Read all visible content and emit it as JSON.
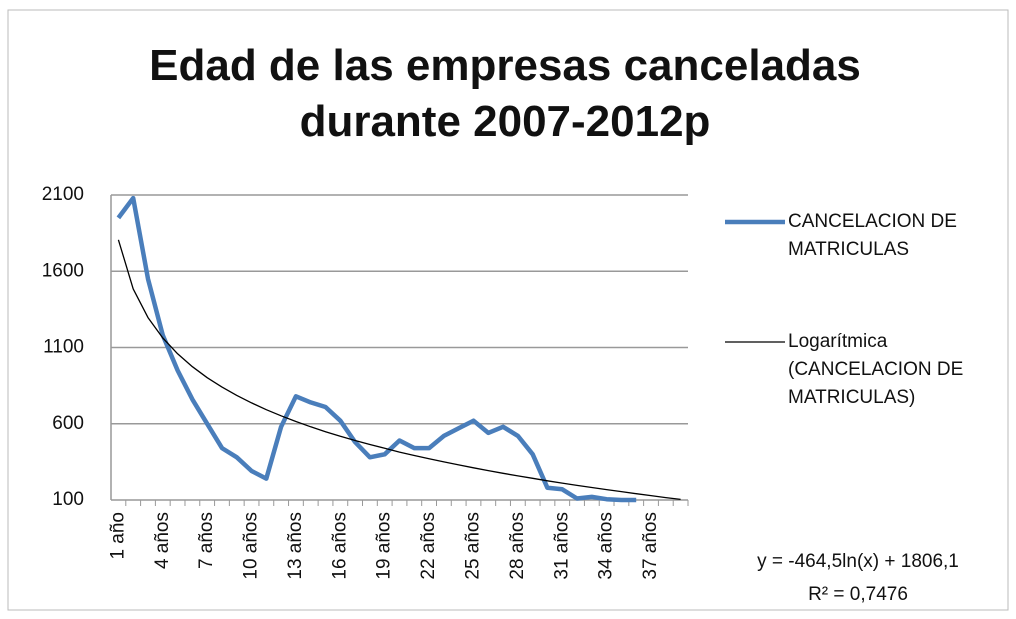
{
  "chart_data": {
    "type": "line",
    "title": "Edad de las empresas canceladas durante 2007-2012p",
    "categories": [
      "1 año",
      null,
      null,
      "4 años",
      null,
      null,
      "7 años",
      null,
      null,
      "10 años",
      null,
      null,
      "13 años",
      null,
      null,
      "16 años",
      null,
      null,
      "19 años",
      null,
      null,
      "22 años",
      null,
      null,
      "25 años",
      null,
      null,
      "28 años",
      null,
      null,
      "31 años",
      null,
      null,
      "34 años",
      null,
      null,
      "37 años",
      null,
      null
    ],
    "series": [
      {
        "name": "CANCELACION DE MATRICULAS",
        "color": "#4a7ebb",
        "values": [
          1950,
          2080,
          1550,
          1180,
          950,
          760,
          600,
          440,
          380,
          290,
          240,
          580,
          780,
          740,
          710,
          620,
          480,
          380,
          400,
          490,
          440,
          440,
          520,
          570,
          620,
          540,
          580,
          520,
          400,
          180,
          170,
          110,
          120,
          105,
          100,
          100,
          null,
          null,
          null
        ]
      },
      {
        "name": "Logarítmica (CANCELACION DE MATRICULAS)",
        "color": "#000000",
        "values": [
          1806,
          1484,
          1296,
          1162,
          1059,
          974,
          902,
          840,
          786,
          737,
          692,
          652,
          615,
          580,
          548,
          518,
          490,
          464,
          439,
          414,
          392,
          370,
          350,
          330,
          311,
          293,
          275,
          258,
          242,
          226,
          211,
          196,
          182,
          168,
          155,
          141,
          129,
          116,
          104
        ]
      }
    ],
    "annotations": [
      "y = -464,5ln(x) + 1806,1",
      "R² = 0,7476"
    ],
    "ylim": [
      100,
      2100
    ],
    "yticks": [
      100,
      600,
      1100,
      1600,
      2100
    ],
    "grid": true
  }
}
